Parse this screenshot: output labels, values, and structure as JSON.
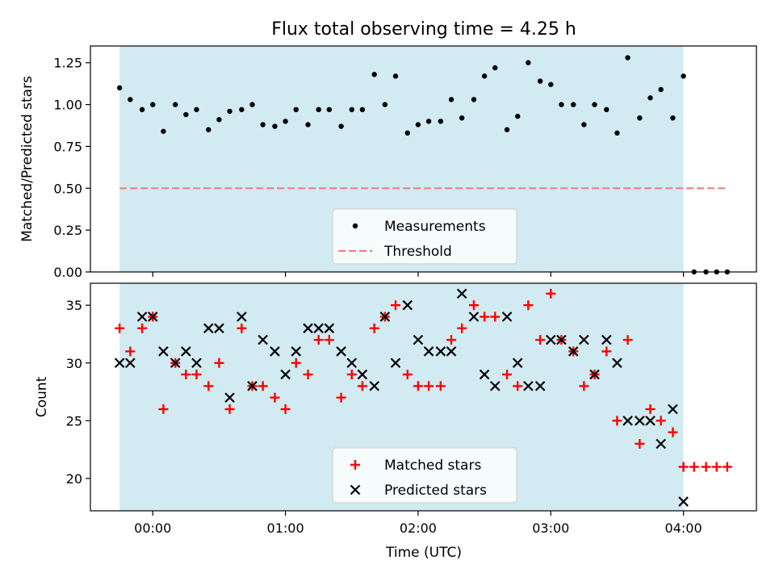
{
  "figure": {
    "title": "Flux total observing time = 4.25 h",
    "xlabel": "Time (UTC)",
    "xticks": [
      {
        "x": 0,
        "label": "00:00"
      },
      {
        "x": 1,
        "label": "01:00"
      },
      {
        "x": 2,
        "label": "02:00"
      },
      {
        "x": 3,
        "label": "03:00"
      },
      {
        "x": 4,
        "label": "04:00"
      }
    ],
    "shade_color": "#add8e6",
    "shade_range": [
      -0.25,
      4.0
    ]
  },
  "chart_data": [
    {
      "type": "scatter",
      "xlabel": "",
      "ylabel": "Matched/Predicted stars",
      "xlim": [
        -0.47,
        4.55
      ],
      "ylim": [
        0.0,
        1.35
      ],
      "yticks": [
        {
          "y": 0.0,
          "label": "0.00"
        },
        {
          "y": 0.25,
          "label": "0.25"
        },
        {
          "y": 0.5,
          "label": "0.50"
        },
        {
          "y": 0.75,
          "label": "0.75"
        },
        {
          "y": 1.0,
          "label": "1.00"
        },
        {
          "y": 1.25,
          "label": "1.25"
        }
      ],
      "legend_position": "lower-center",
      "series": [
        {
          "name": "Measurements",
          "marker": "dot",
          "color": "#000000",
          "points": [
            [
              -0.25,
              1.1
            ],
            [
              -0.17,
              1.03
            ],
            [
              -0.08,
              0.97
            ],
            [
              0.0,
              1.0
            ],
            [
              0.08,
              0.84
            ],
            [
              0.17,
              1.0
            ],
            [
              0.25,
              0.94
            ],
            [
              0.33,
              0.97
            ],
            [
              0.42,
              0.85
            ],
            [
              0.5,
              0.91
            ],
            [
              0.58,
              0.96
            ],
            [
              0.67,
              0.97
            ],
            [
              0.75,
              1.0
            ],
            [
              0.83,
              0.88
            ],
            [
              0.92,
              0.87
            ],
            [
              1.0,
              0.9
            ],
            [
              1.08,
              0.97
            ],
            [
              1.17,
              0.88
            ],
            [
              1.25,
              0.97
            ],
            [
              1.33,
              0.97
            ],
            [
              1.42,
              0.87
            ],
            [
              1.5,
              0.97
            ],
            [
              1.58,
              0.97
            ],
            [
              1.67,
              1.18
            ],
            [
              1.75,
              1.0
            ],
            [
              1.83,
              1.17
            ],
            [
              1.92,
              0.83
            ],
            [
              2.0,
              0.88
            ],
            [
              2.08,
              0.9
            ],
            [
              2.17,
              0.9
            ],
            [
              2.25,
              1.03
            ],
            [
              2.33,
              0.92
            ],
            [
              2.42,
              1.03
            ],
            [
              2.5,
              1.17
            ],
            [
              2.58,
              1.22
            ],
            [
              2.67,
              0.85
            ],
            [
              2.75,
              0.93
            ],
            [
              2.83,
              1.25
            ],
            [
              2.92,
              1.14
            ],
            [
              3.0,
              1.12
            ],
            [
              3.08,
              1.0
            ],
            [
              3.17,
              1.0
            ],
            [
              3.25,
              0.88
            ],
            [
              3.33,
              1.0
            ],
            [
              3.42,
              0.97
            ],
            [
              3.5,
              0.83
            ],
            [
              3.58,
              1.28
            ],
            [
              3.67,
              0.92
            ],
            [
              3.75,
              1.04
            ],
            [
              3.83,
              1.09
            ],
            [
              3.92,
              0.92
            ],
            [
              4.0,
              1.17
            ],
            [
              4.08,
              0.0
            ],
            [
              4.17,
              0.0
            ],
            [
              4.25,
              0.0
            ],
            [
              4.33,
              0.0
            ]
          ]
        },
        {
          "name": "Threshold",
          "marker": "dashed-line",
          "color": "#f08080",
          "points": [
            [
              -0.25,
              0.5
            ],
            [
              4.33,
              0.5
            ]
          ]
        }
      ]
    },
    {
      "type": "scatter",
      "xlabel": "Time (UTC)",
      "ylabel": "Count",
      "xlim": [
        -0.47,
        4.55
      ],
      "ylim": [
        17.2,
        36.9
      ],
      "yticks": [
        {
          "y": 20,
          "label": "20"
        },
        {
          "y": 25,
          "label": "25"
        },
        {
          "y": 30,
          "label": "30"
        },
        {
          "y": 35,
          "label": "35"
        }
      ],
      "legend_position": "lower-center",
      "series": [
        {
          "name": "Matched stars",
          "marker": "plus",
          "color": "#ff0000",
          "points": [
            [
              -0.25,
              33
            ],
            [
              -0.17,
              31
            ],
            [
              -0.08,
              33
            ],
            [
              0.0,
              34
            ],
            [
              0.08,
              26
            ],
            [
              0.17,
              30
            ],
            [
              0.25,
              29
            ],
            [
              0.33,
              29
            ],
            [
              0.42,
              28
            ],
            [
              0.5,
              30
            ],
            [
              0.58,
              26
            ],
            [
              0.67,
              33
            ],
            [
              0.75,
              28
            ],
            [
              0.83,
              28
            ],
            [
              0.92,
              27
            ],
            [
              1.0,
              26
            ],
            [
              1.08,
              30
            ],
            [
              1.17,
              29
            ],
            [
              1.25,
              32
            ],
            [
              1.33,
              32
            ],
            [
              1.42,
              27
            ],
            [
              1.5,
              29
            ],
            [
              1.58,
              28
            ],
            [
              1.67,
              33
            ],
            [
              1.75,
              34
            ],
            [
              1.83,
              35
            ],
            [
              1.92,
              29
            ],
            [
              2.0,
              28
            ],
            [
              2.08,
              28
            ],
            [
              2.17,
              28
            ],
            [
              2.25,
              32
            ],
            [
              2.33,
              33
            ],
            [
              2.42,
              35
            ],
            [
              2.5,
              34
            ],
            [
              2.58,
              34
            ],
            [
              2.67,
              29
            ],
            [
              2.75,
              28
            ],
            [
              2.83,
              35
            ],
            [
              2.92,
              32
            ],
            [
              3.0,
              36
            ],
            [
              3.08,
              32
            ],
            [
              3.17,
              31
            ],
            [
              3.25,
              28
            ],
            [
              3.33,
              29
            ],
            [
              3.42,
              31
            ],
            [
              3.5,
              25
            ],
            [
              3.58,
              32
            ],
            [
              3.67,
              23
            ],
            [
              3.75,
              26
            ],
            [
              3.83,
              25
            ],
            [
              3.92,
              24
            ],
            [
              4.0,
              21
            ],
            [
              4.08,
              21
            ],
            [
              4.17,
              21
            ],
            [
              4.25,
              21
            ],
            [
              4.33,
              21
            ]
          ]
        },
        {
          "name": "Predicted stars",
          "marker": "x",
          "color": "#000000",
          "points": [
            [
              -0.25,
              30
            ],
            [
              -0.17,
              30
            ],
            [
              -0.08,
              34
            ],
            [
              0.0,
              34
            ],
            [
              0.08,
              31
            ],
            [
              0.17,
              30
            ],
            [
              0.25,
              31
            ],
            [
              0.33,
              30
            ],
            [
              0.42,
              33
            ],
            [
              0.5,
              33
            ],
            [
              0.58,
              27
            ],
            [
              0.67,
              34
            ],
            [
              0.75,
              28
            ],
            [
              0.83,
              32
            ],
            [
              0.92,
              31
            ],
            [
              1.0,
              29
            ],
            [
              1.08,
              31
            ],
            [
              1.17,
              33
            ],
            [
              1.25,
              33
            ],
            [
              1.33,
              33
            ],
            [
              1.42,
              31
            ],
            [
              1.5,
              30
            ],
            [
              1.58,
              29
            ],
            [
              1.67,
              28
            ],
            [
              1.75,
              34
            ],
            [
              1.83,
              30
            ],
            [
              1.92,
              35
            ],
            [
              2.0,
              32
            ],
            [
              2.08,
              31
            ],
            [
              2.17,
              31
            ],
            [
              2.25,
              31
            ],
            [
              2.33,
              36
            ],
            [
              2.42,
              34
            ],
            [
              2.5,
              29
            ],
            [
              2.58,
              28
            ],
            [
              2.67,
              34
            ],
            [
              2.75,
              30
            ],
            [
              2.83,
              28
            ],
            [
              2.92,
              28
            ],
            [
              3.0,
              32
            ],
            [
              3.08,
              32
            ],
            [
              3.17,
              31
            ],
            [
              3.25,
              32
            ],
            [
              3.33,
              29
            ],
            [
              3.42,
              32
            ],
            [
              3.5,
              30
            ],
            [
              3.58,
              25
            ],
            [
              3.67,
              25
            ],
            [
              3.75,
              25
            ],
            [
              3.83,
              23
            ],
            [
              3.92,
              26
            ],
            [
              4.0,
              18
            ]
          ]
        }
      ]
    }
  ]
}
